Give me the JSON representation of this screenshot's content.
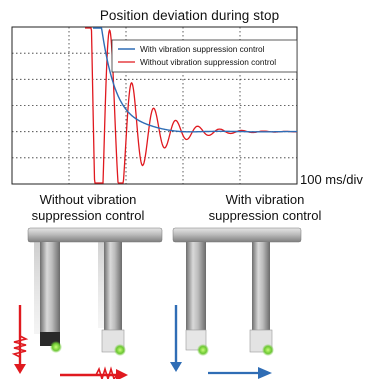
{
  "chart_data": {
    "type": "line",
    "title": "Position deviation during stop",
    "xlabel": "",
    "ylabel": "",
    "x_scale_label": "100 ms/div",
    "grid": true,
    "legend_position": "top-right",
    "series": [
      {
        "name": "With vibration suppression control",
        "color": "#2f6db5"
      },
      {
        "name": "Without vibration suppression control",
        "color": "#e0191f"
      }
    ]
  },
  "captions": {
    "without": [
      "Without vibration",
      "suppression control"
    ],
    "with": [
      "With vibration",
      "suppression control"
    ]
  },
  "colors": {
    "red_arrow": "#e0191f",
    "blue_arrow": "#2f6db5",
    "led_green": "#6cc832"
  }
}
